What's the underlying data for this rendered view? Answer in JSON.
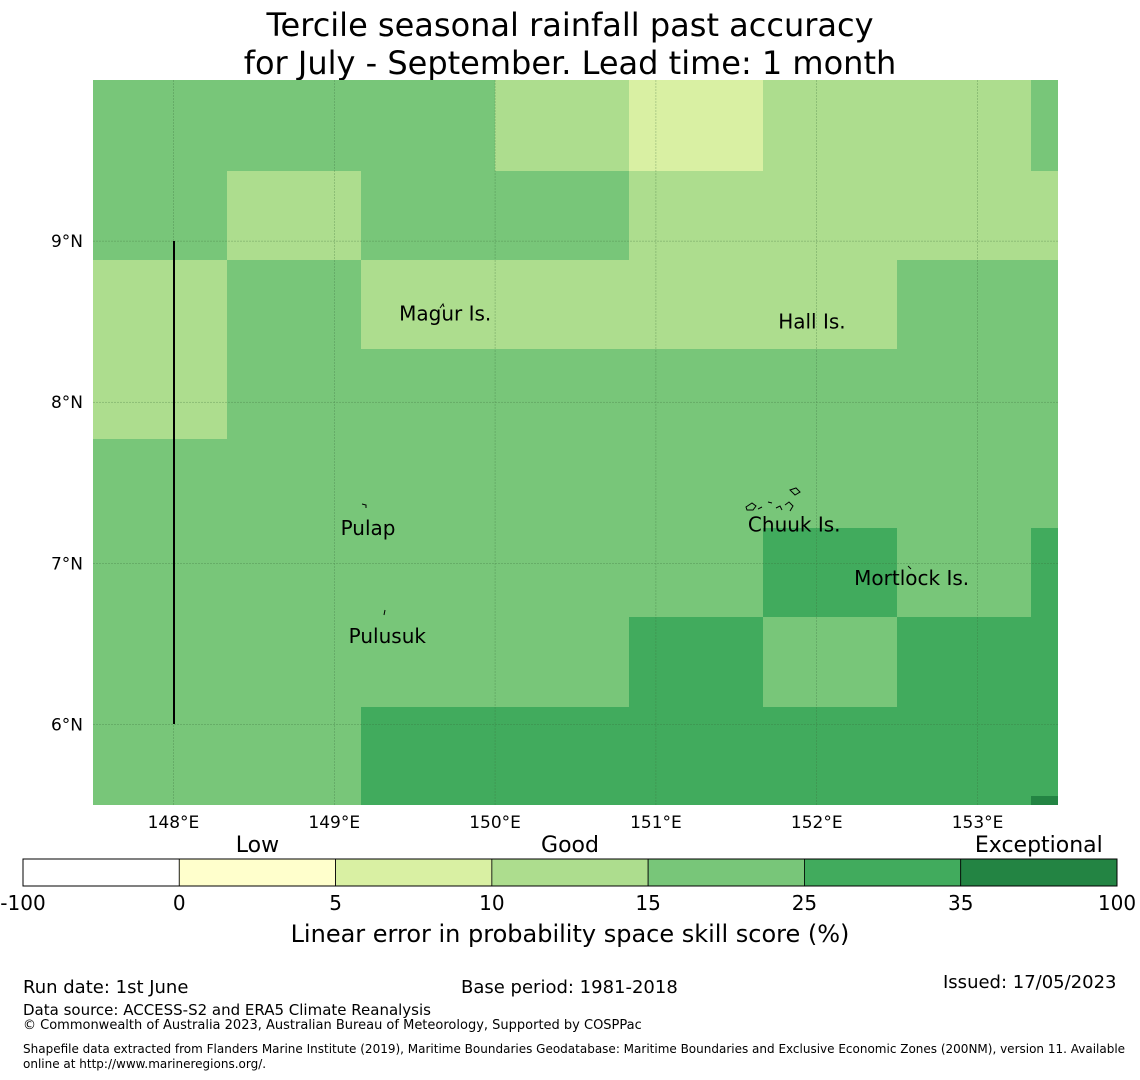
{
  "title": {
    "line1": "Tercile seasonal rainfall past accuracy",
    "line2": "for July - September. Lead time: 1 month"
  },
  "map": {
    "lat_range": [
      5.5,
      10.0
    ],
    "lon_range": [
      147.5,
      153.5
    ],
    "lat_ticks": [
      {
        "value": 6,
        "label": "6°N"
      },
      {
        "value": 7,
        "label": "7°N"
      },
      {
        "value": 8,
        "label": "8°N"
      },
      {
        "value": 9,
        "label": "9°N"
      }
    ],
    "lon_ticks": [
      {
        "value": 148,
        "label": "148°E"
      },
      {
        "value": 149,
        "label": "149°E"
      },
      {
        "value": 150,
        "label": "150°E"
      },
      {
        "value": 151,
        "label": "151°E"
      },
      {
        "value": 152,
        "label": "152°E"
      },
      {
        "value": 153,
        "label": "153°E"
      }
    ],
    "places": [
      {
        "name": "Magur Is.",
        "lon": 149.69,
        "lat": 8.55
      },
      {
        "name": "Hall Is.",
        "lon": 151.97,
        "lat": 8.5
      },
      {
        "name": "Pulap",
        "lon": 149.21,
        "lat": 7.22
      },
      {
        "name": "Chuuk Is.",
        "lon": 151.86,
        "lat": 7.24
      },
      {
        "name": "Mortlock Is.",
        "lon": 152.59,
        "lat": 6.91
      },
      {
        "name": "Pulusuk",
        "lon": 149.33,
        "lat": 6.55
      }
    ],
    "class_colors": [
      "#ffffff",
      "#ffffcc",
      "#d9f0a3",
      "#addd8e",
      "#78c679",
      "#41ab5d",
      "#238443"
    ]
  },
  "colorbar": {
    "categories": [
      "Low",
      "Good",
      "Exceptional"
    ],
    "ticks": [
      "-100",
      "0",
      "5",
      "10",
      "15",
      "25",
      "35",
      "100"
    ],
    "colors": [
      "#ffffff",
      "#ffffcc",
      "#d9f0a3",
      "#addd8e",
      "#78c679",
      "#41ab5d",
      "#238443"
    ],
    "label": "Linear error in probability space skill score (%)"
  },
  "footer": {
    "run_date": "Run date: 1st June",
    "base_period": "Base period: 1981-2018",
    "issued": "Issued: 17/05/2023",
    "data_source": "Data source: ACCESS-S2 and ERA5 Climate Reanalysis",
    "copyright": "© Commonwealth of Australia 2023, Australian Bureau of Meteorology, Supported by COSPPac",
    "shapefile_line1": "Shapefile data extracted from Flanders Marine Institute (2019), Maritime Boundaries Geodatabase: Maritime Boundaries and Exclusive Economic Zones (200NM), version 11. Available",
    "shapefile_line2": "online at http://www.marineregions.org/."
  }
}
